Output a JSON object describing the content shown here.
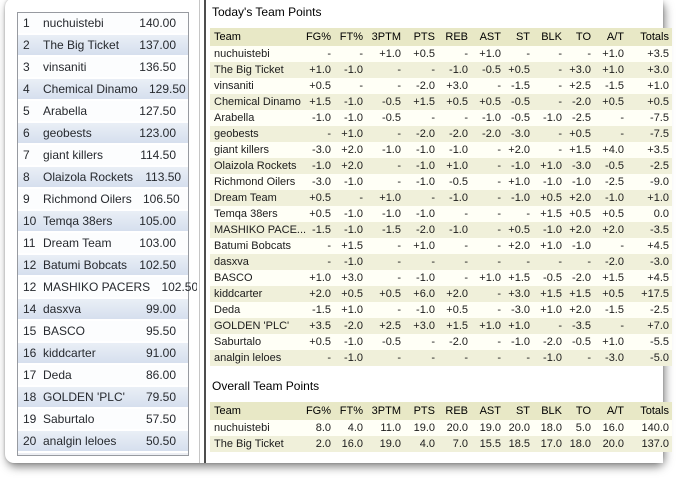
{
  "standings": {
    "items": [
      {
        "rank": "1",
        "team": "nuchuistebi",
        "score": "140.00"
      },
      {
        "rank": "2",
        "team": "The Big Ticket",
        "score": "137.00"
      },
      {
        "rank": "3",
        "team": "vinsaniti",
        "score": "136.50"
      },
      {
        "rank": "4",
        "team": "Chemical Dinamo",
        "score": "129.50"
      },
      {
        "rank": "5",
        "team": "Arabella",
        "score": "127.50"
      },
      {
        "rank": "6",
        "team": "geobests",
        "score": "123.00"
      },
      {
        "rank": "7",
        "team": "giant killers",
        "score": "114.50"
      },
      {
        "rank": "8",
        "team": "Olaizola Rockets",
        "score": "113.50"
      },
      {
        "rank": "9",
        "team": "Richmond Oilers",
        "score": "106.50"
      },
      {
        "rank": "10",
        "team": "Temqa 38ers",
        "score": "105.00"
      },
      {
        "rank": "11",
        "team": "Dream Team",
        "score": "103.00"
      },
      {
        "rank": "12",
        "team": "Batumi Bobcats",
        "score": "102.50"
      },
      {
        "rank": "12",
        "team": "MASHIKO PACERS",
        "score": "102.50"
      },
      {
        "rank": "14",
        "team": "dasxva",
        "score": "99.00"
      },
      {
        "rank": "15",
        "team": "BASCO",
        "score": "95.50"
      },
      {
        "rank": "16",
        "team": "kiddcarter",
        "score": "91.00"
      },
      {
        "rank": "17",
        "team": "Deda",
        "score": "86.00"
      },
      {
        "rank": "18",
        "team": "GOLDEN 'PLC'",
        "score": "79.50"
      },
      {
        "rank": "19",
        "team": "Saburtalo",
        "score": "57.50"
      },
      {
        "rank": "20",
        "team": "analgin leloes",
        "score": "50.50"
      }
    ]
  },
  "today": {
    "title": "Today's Team Points",
    "columns": [
      "Team",
      "FG%",
      "FT%",
      "3PTM",
      "PTS",
      "REB",
      "AST",
      "ST",
      "BLK",
      "TO",
      "A/T",
      "Totals"
    ],
    "rows": [
      [
        "nuchuistebi",
        "-",
        "-",
        "+1.0",
        "+0.5",
        "-",
        "+1.0",
        "-",
        "-",
        "-",
        "+1.0",
        "+3.5"
      ],
      [
        "The Big Ticket",
        "+1.0",
        "-1.0",
        "-",
        "-",
        "-1.0",
        "-0.5",
        "+0.5",
        "-",
        "+3.0",
        "+1.0",
        "+3.0"
      ],
      [
        "vinsaniti",
        "+0.5",
        "-",
        "-",
        "-2.0",
        "+3.0",
        "-",
        "-1.5",
        "-",
        "+2.5",
        "-1.5",
        "+1.0"
      ],
      [
        "Chemical Dinamo",
        "+1.5",
        "-1.0",
        "-0.5",
        "+1.5",
        "+0.5",
        "+0.5",
        "-0.5",
        "-",
        "-2.0",
        "+0.5",
        "+0.5"
      ],
      [
        "Arabella",
        "-1.0",
        "-1.0",
        "-0.5",
        "-",
        "-",
        "-1.0",
        "-0.5",
        "-1.0",
        "-2.5",
        "-",
        "-7.5"
      ],
      [
        "geobests",
        "-",
        "+1.0",
        "-",
        "-2.0",
        "-2.0",
        "-2.0",
        "-3.0",
        "-",
        "+0.5",
        "-",
        "-7.5"
      ],
      [
        "giant killers",
        "-3.0",
        "+2.0",
        "-1.0",
        "-1.0",
        "-1.0",
        "-",
        "+2.0",
        "-",
        "+1.5",
        "+4.0",
        "+3.5"
      ],
      [
        "Olaizola Rockets",
        "-1.0",
        "+2.0",
        "-",
        "-1.0",
        "+1.0",
        "-",
        "-1.0",
        "+1.0",
        "-3.0",
        "-0.5",
        "-2.5"
      ],
      [
        "Richmond Oilers",
        "-3.0",
        "-1.0",
        "-",
        "-1.0",
        "-0.5",
        "-",
        "+1.0",
        "-1.0",
        "-1.0",
        "-2.5",
        "-9.0"
      ],
      [
        "Dream Team",
        "+0.5",
        "-",
        "+1.0",
        "-",
        "-1.0",
        "-",
        "-1.0",
        "+0.5",
        "+2.0",
        "-1.0",
        "+1.0"
      ],
      [
        "Temqa 38ers",
        "+0.5",
        "-1.0",
        "-1.0",
        "-1.0",
        "-",
        "-",
        "-",
        "+1.5",
        "+0.5",
        "+0.5",
        "0.0"
      ],
      [
        "MASHIKO PACE...",
        "-1.5",
        "-1.0",
        "-1.5",
        "-2.0",
        "-1.0",
        "-",
        "+0.5",
        "-1.0",
        "+2.0",
        "+2.0",
        "-3.5"
      ],
      [
        "Batumi Bobcats",
        "-",
        "+1.5",
        "-",
        "+1.0",
        "-",
        "-",
        "+2.0",
        "+1.0",
        "-1.0",
        "-",
        "+4.5"
      ],
      [
        "dasxva",
        "-",
        "-1.0",
        "-",
        "-",
        "-",
        "-",
        "-",
        "-",
        "-",
        "-2.0",
        "-3.0"
      ],
      [
        "BASCO",
        "+1.0",
        "+3.0",
        "-",
        "-1.0",
        "-",
        "+1.0",
        "+1.5",
        "-0.5",
        "-2.0",
        "+1.5",
        "+4.5"
      ],
      [
        "kiddcarter",
        "+2.0",
        "+0.5",
        "+0.5",
        "+6.0",
        "+2.0",
        "-",
        "+3.0",
        "+1.5",
        "+1.5",
        "+0.5",
        "+17.5"
      ],
      [
        "Deda",
        "-1.5",
        "+1.0",
        "-",
        "-1.0",
        "+0.5",
        "-",
        "-3.0",
        "+1.0",
        "+2.0",
        "-1.5",
        "-2.5"
      ],
      [
        "GOLDEN 'PLC'",
        "+3.5",
        "-2.0",
        "+2.5",
        "+3.0",
        "+1.5",
        "+1.0",
        "+1.0",
        "-",
        "-3.5",
        "-",
        "+7.0"
      ],
      [
        "Saburtalo",
        "+0.5",
        "-1.0",
        "-0.5",
        "-",
        "-2.0",
        "-",
        "-1.0",
        "-2.0",
        "-0.5",
        "+1.0",
        "-5.5"
      ],
      [
        "analgin leloes",
        "-",
        "-1.0",
        "-",
        "-",
        "-",
        "-",
        "-",
        "-1.0",
        "-",
        "-3.0",
        "-5.0"
      ]
    ]
  },
  "overall": {
    "title": "Overall Team Points",
    "columns": [
      "Team",
      "FG%",
      "FT%",
      "3PTM",
      "PTS",
      "REB",
      "AST",
      "ST",
      "BLK",
      "TO",
      "A/T",
      "Totals"
    ],
    "rows": [
      [
        "nuchuistebi",
        "8.0",
        "4.0",
        "11.0",
        "19.0",
        "20.0",
        "19.0",
        "20.0",
        "18.0",
        "5.0",
        "16.0",
        "140.0"
      ],
      [
        "The Big Ticket",
        "2.0",
        "16.0",
        "19.0",
        "4.0",
        "7.0",
        "15.5",
        "18.5",
        "17.0",
        "18.0",
        "20.0",
        "137.0"
      ]
    ]
  },
  "colors": {
    "table_header_bg": "#e8e8c6",
    "table_row_bg": "#fffff6",
    "table_row_alt_bg": "#f0f0da",
    "standings_row_bg": "#fcfdfe",
    "standings_row_alt_bg": "#dce3ef",
    "divider_dark": "#4e4e4e"
  }
}
